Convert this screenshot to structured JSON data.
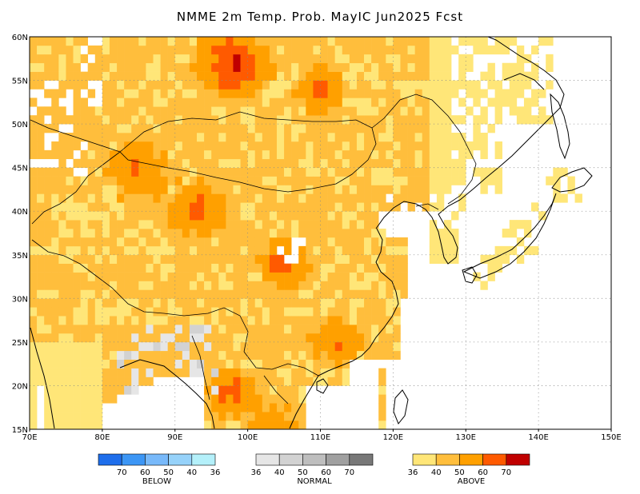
{
  "title": "NMME 2m Temp. Prob. MayIC  Jun2025 Fcst",
  "map": {
    "lon_range": [
      70,
      150
    ],
    "lat_range": [
      15,
      60
    ],
    "lon_ticks": [
      "70E",
      "80E",
      "90E",
      "100E",
      "110E",
      "120E",
      "130E",
      "140E",
      "150E"
    ],
    "lat_ticks": [
      "60N",
      "55N",
      "50N",
      "45N",
      "40N",
      "35N",
      "30N",
      "25N",
      "20N",
      "15N"
    ],
    "grid": true,
    "cell_deg": 1
  },
  "legend": {
    "below": {
      "name": "BELOW",
      "labels": [
        "70",
        "60",
        "50",
        "40",
        "36"
      ],
      "colors": [
        "#1e6eeb",
        "#3c96f5",
        "#78b9fa",
        "#96d2fa",
        "#b4f0fa"
      ]
    },
    "normal": {
      "name": "NORMAL",
      "labels": [
        "36",
        "40",
        "50",
        "60",
        "70"
      ],
      "colors": [
        "#e6e6e6",
        "#d2d2d2",
        "#bebebe",
        "#a0a0a0",
        "#787878"
      ]
    },
    "above": {
      "name": "ABOVE",
      "labels": [
        "36",
        "40",
        "50",
        "60",
        "70"
      ],
      "colors": [
        "#ffe678",
        "#ffbe3c",
        "#ffa000",
        "#ff5a00",
        "#c00000"
      ]
    }
  }
}
